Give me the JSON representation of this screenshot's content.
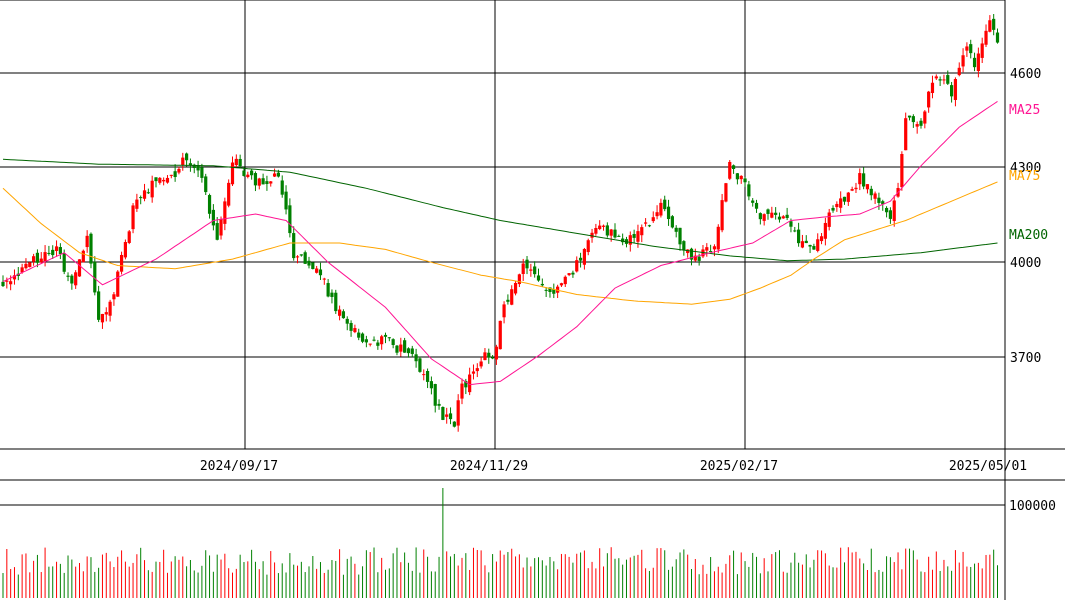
{
  "chart_data": {
    "type": "candlestick",
    "price": {
      "y_ticks": [
        "4600",
        "4300",
        "4000",
        "3700"
      ],
      "y_tick_values": [
        4600,
        4300,
        4000,
        3700
      ],
      "ylim": [
        3440,
        4835
      ],
      "ma_labels": [
        "MA25",
        "MA75",
        "MA200"
      ],
      "x_labels": [
        "2024/09/17",
        "2024/11/29",
        "2025/02/17",
        "2025/05/01"
      ],
      "anchors": [
        [
          0,
          3960
        ],
        [
          8,
          4030
        ],
        [
          14,
          4060
        ],
        [
          18,
          3950
        ],
        [
          22,
          4090
        ],
        [
          25,
          3830
        ],
        [
          29,
          3930
        ],
        [
          35,
          4230
        ],
        [
          44,
          4290
        ],
        [
          48,
          4340
        ],
        [
          52,
          4290
        ],
        [
          56,
          4080
        ],
        [
          60,
          4340
        ],
        [
          66,
          4260
        ],
        [
          72,
          4290
        ],
        [
          76,
          4050
        ],
        [
          82,
          4000
        ],
        [
          88,
          3860
        ],
        [
          94,
          3770
        ],
        [
          100,
          3780
        ],
        [
          106,
          3730
        ],
        [
          108,
          3720
        ],
        [
          110,
          3660
        ],
        [
          115,
          3540
        ],
        [
          118,
          3520
        ],
        [
          120,
          3630
        ],
        [
          124,
          3680
        ],
        [
          126,
          3730
        ],
        [
          128,
          3710
        ],
        [
          131,
          3880
        ],
        [
          136,
          4030
        ],
        [
          140,
          3960
        ],
        [
          144,
          3920
        ],
        [
          150,
          4010
        ],
        [
          156,
          4140
        ],
        [
          162,
          4080
        ],
        [
          168,
          4140
        ],
        [
          172,
          4190
        ],
        [
          178,
          4060
        ],
        [
          182,
          4030
        ],
        [
          186,
          4080
        ],
        [
          190,
          4330
        ],
        [
          194,
          4260
        ],
        [
          198,
          4160
        ],
        [
          204,
          4170
        ],
        [
          208,
          4090
        ],
        [
          212,
          4060
        ],
        [
          216,
          4160
        ],
        [
          220,
          4220
        ],
        [
          224,
          4280
        ],
        [
          228,
          4220
        ],
        [
          232,
          4170
        ],
        [
          234,
          4240
        ],
        [
          236,
          4480
        ],
        [
          240,
          4460
        ],
        [
          244,
          4610
        ],
        [
          248,
          4540
        ],
        [
          252,
          4700
        ],
        [
          254,
          4640
        ],
        [
          258,
          4760
        ],
        [
          260,
          4720
        ]
      ],
      "ma25_anchors": [
        [
          0,
          3960
        ],
        [
          16,
          4050
        ],
        [
          26,
          3950
        ],
        [
          40,
          4030
        ],
        [
          55,
          4150
        ],
        [
          66,
          4170
        ],
        [
          74,
          4150
        ],
        [
          85,
          4020
        ],
        [
          100,
          3880
        ],
        [
          112,
          3720
        ],
        [
          122,
          3640
        ],
        [
          130,
          3650
        ],
        [
          140,
          3730
        ],
        [
          150,
          3820
        ],
        [
          160,
          3940
        ],
        [
          172,
          4010
        ],
        [
          185,
          4050
        ],
        [
          196,
          4080
        ],
        [
          206,
          4150
        ],
        [
          214,
          4160
        ],
        [
          224,
          4170
        ],
        [
          232,
          4210
        ],
        [
          240,
          4320
        ],
        [
          250,
          4440
        ],
        [
          260,
          4520
        ]
      ],
      "ma75_anchors": [
        [
          0,
          4250
        ],
        [
          10,
          4140
        ],
        [
          20,
          4050
        ],
        [
          30,
          4010
        ],
        [
          45,
          4000
        ],
        [
          60,
          4030
        ],
        [
          75,
          4080
        ],
        [
          88,
          4080
        ],
        [
          100,
          4060
        ],
        [
          112,
          4020
        ],
        [
          125,
          3980
        ],
        [
          135,
          3960
        ],
        [
          150,
          3920
        ],
        [
          165,
          3900
        ],
        [
          180,
          3890
        ],
        [
          190,
          3905
        ],
        [
          198,
          3940
        ],
        [
          206,
          3980
        ],
        [
          212,
          4030
        ],
        [
          220,
          4090
        ],
        [
          228,
          4120
        ],
        [
          236,
          4150
        ],
        [
          244,
          4190
        ],
        [
          252,
          4230
        ],
        [
          260,
          4270
        ]
      ],
      "ma200_anchors": [
        [
          0,
          4340
        ],
        [
          25,
          4325
        ],
        [
          55,
          4320
        ],
        [
          75,
          4300
        ],
        [
          95,
          4250
        ],
        [
          115,
          4190
        ],
        [
          130,
          4150
        ],
        [
          150,
          4110
        ],
        [
          170,
          4070
        ],
        [
          190,
          4040
        ],
        [
          205,
          4025
        ],
        [
          220,
          4030
        ],
        [
          240,
          4050
        ],
        [
          260,
          4080
        ]
      ]
    },
    "volume": {
      "y_ticks": [
        "100000"
      ],
      "y_tick_values": [
        100000
      ],
      "ylim": [
        0,
        125000
      ]
    }
  },
  "colors": {
    "up": "#ff0000",
    "down": "#008000",
    "ma25": "#ff1493",
    "ma75": "#ffa500",
    "ma200": "#006400",
    "grid": "#000000",
    "text": "#000000"
  },
  "series_meta": {
    "n": 261,
    "seed": 20250501
  }
}
